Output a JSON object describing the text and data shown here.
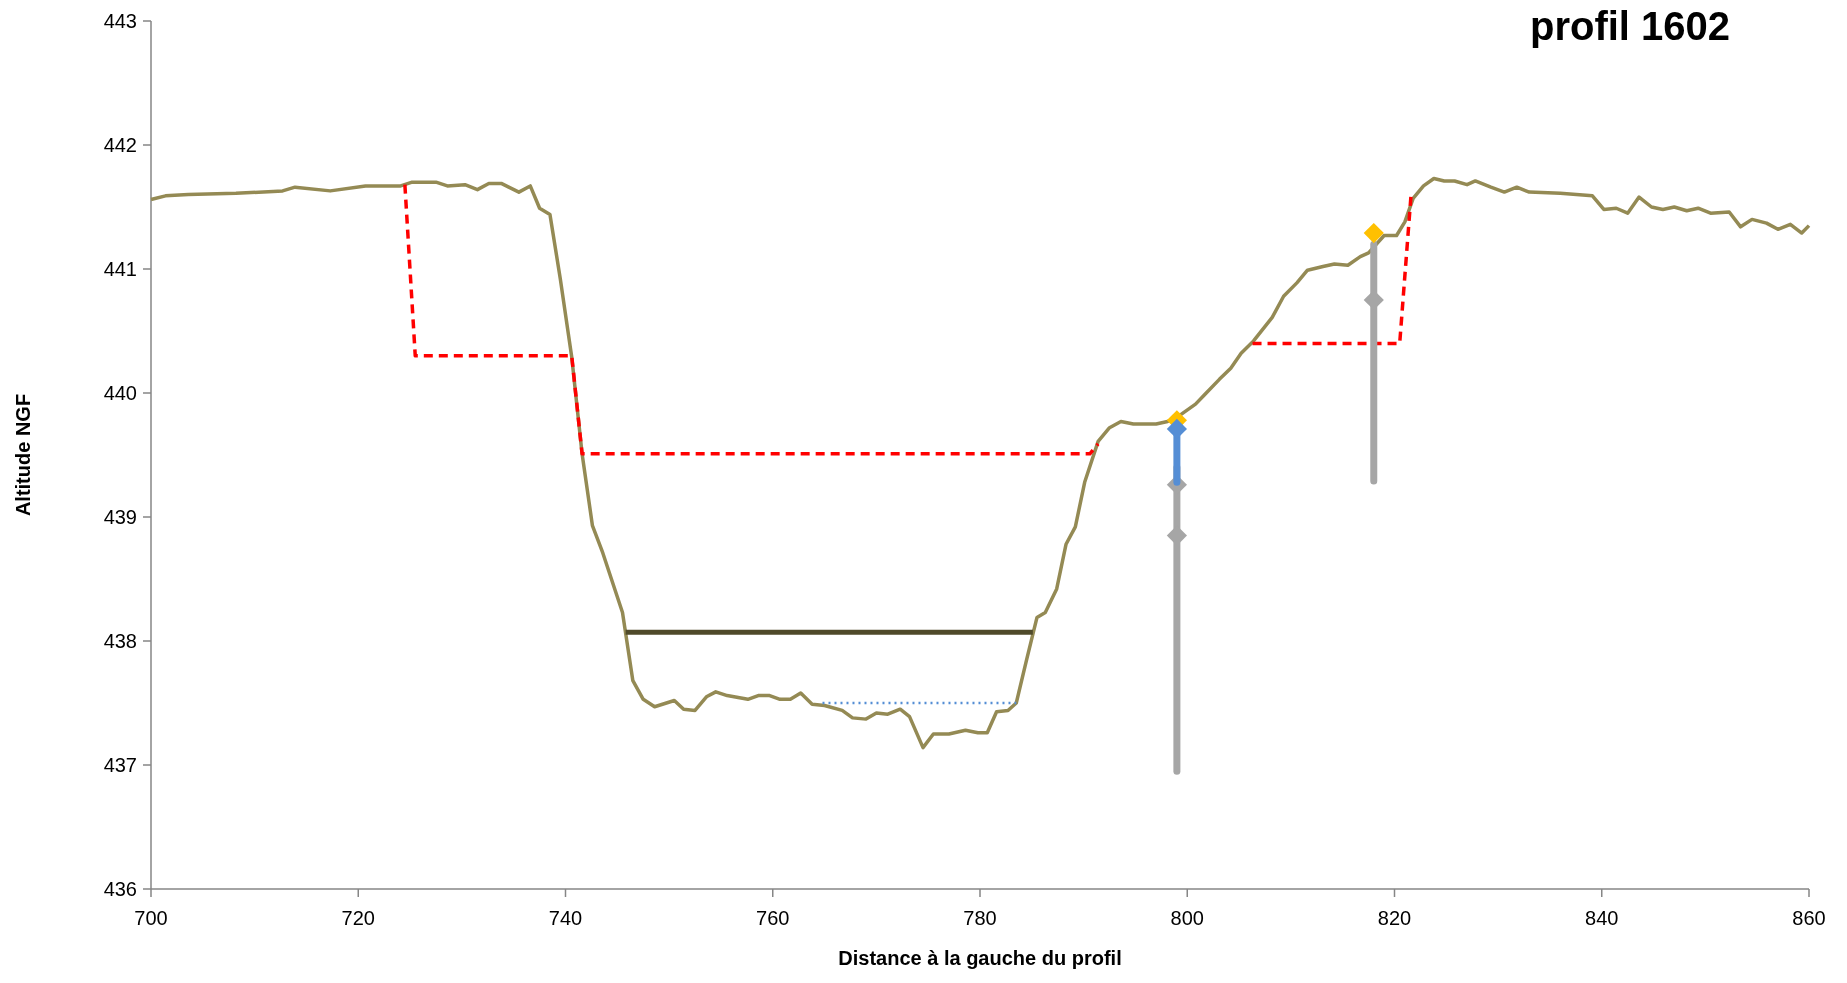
{
  "chart_data": {
    "type": "line",
    "title": "profil 1602",
    "xlabel": "Distance à la gauche du profil",
    "ylabel": "Altitude NGF",
    "xlim": [
      700,
      860
    ],
    "xticks": [
      700,
      720,
      740,
      760,
      780,
      800,
      820,
      840,
      860
    ],
    "ylim": [
      436,
      443
    ],
    "yticks": [
      436,
      437,
      438,
      439,
      440,
      441,
      442,
      443
    ],
    "grid": false,
    "marker": "none",
    "line_style": "solid",
    "series": [
      {
        "color": "#948a54",
        "x": [
          700,
          701.4,
          703.6,
          708.2,
          712.7,
          713.9,
          717.3,
          720.7,
          724.1,
          725.2,
          727.5,
          728.6,
          730.3,
          731.5,
          732.6,
          733.8,
          735.5,
          736.6,
          737.5,
          738.5,
          739.5,
          740.6,
          741.6,
          742.6,
          743.6,
          745.5,
          746.5,
          747.5,
          748.6,
          750.5,
          751.4,
          752.5,
          753.6,
          754.5,
          755.6,
          757.6,
          758.6,
          759.7,
          760.7,
          761.7,
          762.7,
          763.8,
          765,
          766.7,
          767.7,
          769,
          770,
          771.1,
          772.3,
          773.2,
          774.5,
          775.5,
          777,
          778.6,
          779.8,
          780.7,
          781.6,
          782.7,
          783.5,
          784.5,
          785.5,
          786.3,
          787.4,
          788.3,
          789.2,
          790.1,
          791.4,
          792.5,
          793.6,
          794.8,
          797,
          798.1,
          799.1,
          800.8,
          801.6,
          803.1,
          804.2,
          805.2,
          806.4,
          808.2,
          809.3,
          810.6,
          811.6,
          813.1,
          814.2,
          815.5,
          816.7,
          817.5,
          819,
          820.2,
          821,
          821.8,
          822.8,
          823.8,
          824.8,
          825.8,
          827,
          827.8,
          829.3,
          830.6,
          831.8,
          833,
          836,
          839.1,
          840.2,
          841.4,
          842.5,
          843.6,
          844.8,
          845.9,
          847,
          848.2,
          849.3,
          850.5,
          852.3,
          853.4,
          854.5,
          855.9,
          857,
          858.2,
          859.3,
          860
        ],
        "values": [
          441.56,
          441.59,
          441.6,
          441.61,
          441.63,
          441.66,
          441.63,
          441.67,
          441.67,
          441.7,
          441.7,
          441.67,
          441.68,
          441.64,
          441.69,
          441.69,
          441.62,
          441.67,
          441.49,
          441.44,
          440.92,
          440.29,
          439.51,
          438.93,
          438.71,
          438.23,
          437.68,
          437.53,
          437.47,
          437.52,
          437.45,
          437.44,
          437.55,
          437.59,
          437.56,
          437.53,
          437.56,
          437.56,
          437.53,
          437.53,
          437.58,
          437.49,
          437.48,
          437.44,
          437.38,
          437.37,
          437.42,
          437.41,
          437.45,
          437.39,
          437.14,
          437.25,
          437.25,
          437.28,
          437.26,
          437.26,
          437.43,
          437.44,
          437.5,
          437.85,
          438.19,
          438.23,
          438.42,
          438.78,
          438.92,
          439.28,
          439.61,
          439.72,
          439.77,
          439.75,
          439.75,
          439.77,
          439.81,
          439.91,
          439.98,
          440.11,
          440.2,
          440.32,
          440.42,
          440.61,
          440.78,
          440.89,
          440.99,
          441.02,
          441.04,
          441.03,
          441.1,
          441.13,
          441.27,
          441.27,
          441.38,
          441.57,
          441.67,
          441.73,
          441.71,
          441.71,
          441.68,
          441.71,
          441.66,
          441.62,
          441.66,
          441.62,
          441.61,
          441.59,
          441.48,
          441.49,
          441.45,
          441.58,
          441.5,
          441.48,
          441.5,
          441.47,
          441.49,
          441.45,
          441.46,
          441.34,
          441.4,
          441.37,
          441.32,
          441.36,
          441.29,
          441.35
        ]
      },
      {
        "type": "line",
        "color": "#ff0000",
        "line_style": "dashed",
        "x": [
          724.5,
          725.5,
          740.6,
          741.6,
          790.6,
          791.4
        ],
        "values": [
          441.68,
          440.3,
          440.3,
          439.51,
          439.51,
          439.59
        ]
      },
      {
        "type": "line",
        "color": "#ff0000",
        "line_style": "dashed",
        "x": [
          806.3,
          820.5,
          821.6
        ],
        "values": [
          440.4,
          440.4,
          441.6
        ]
      },
      {
        "type": "line",
        "color": "#4f4a2a",
        "x": [
          745.8,
          785.1
        ],
        "values": [
          438.07,
          438.07
        ]
      },
      {
        "type": "line",
        "color": "#558ed5",
        "line_style": "dotted",
        "x": [
          764.8,
          783.5
        ],
        "values": [
          437.5,
          437.5
        ]
      },
      {
        "type": "line",
        "color": "#a6a6a6",
        "x": [
          818,
          818
        ],
        "values": [
          439.29,
          441.2
        ]
      },
      {
        "type": "scatter",
        "color": "#a6a6a6",
        "marker": "diamond",
        "x": [
          799,
          799,
          818
        ],
        "values": [
          439.26,
          438.85,
          440.75
        ],
        "errors": [
          null,
          [
            436.95,
            439.4
          ],
          null
        ]
      },
      {
        "type": "scatter",
        "color": "#ffc000",
        "marker": "diamond",
        "x": [
          799,
          818
        ],
        "values": [
          439.78,
          441.29
        ]
      },
      {
        "type": "scatter",
        "color": "#558ed5",
        "marker": "diamond",
        "x": [
          799
        ],
        "values": [
          439.71
        ],
        "errors": [
          [
            439.28,
            439.71
          ]
        ]
      }
    ]
  }
}
